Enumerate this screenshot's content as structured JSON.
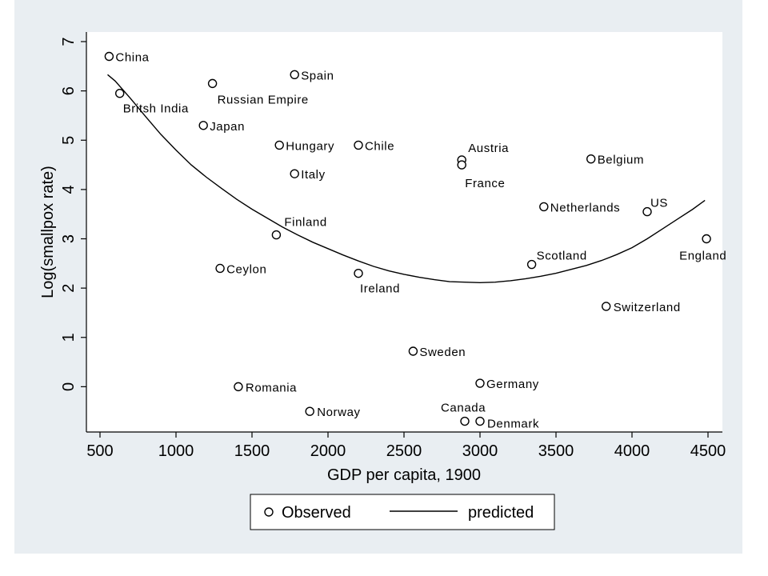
{
  "chart_data": {
    "type": "scatter",
    "title": "",
    "xlabel": "GDP per capita, 1900",
    "ylabel": "Log(smallpox rate)",
    "xlim": [
      500,
      4500
    ],
    "ylim": [
      -1,
      7
    ],
    "xticks": [
      500,
      1000,
      1500,
      2000,
      2500,
      3000,
      3500,
      4000,
      4500
    ],
    "yticks": [
      0,
      1,
      2,
      3,
      4,
      5,
      6,
      7
    ],
    "grid": false,
    "legend_position": "bottom",
    "legend": [
      {
        "label": "Observed",
        "marker": "circle"
      },
      {
        "label": "predicted",
        "marker": "line"
      }
    ],
    "colors": {
      "background": "#e9eef2",
      "plot_bg": "#ffffff",
      "marks": "#000000"
    },
    "series": [
      {
        "name": "Observed",
        "kind": "scatter",
        "points": [
          {
            "label": "China",
            "x": 560,
            "y": 6.7
          },
          {
            "label": "Britsh India",
            "x": 630,
            "y": 5.95
          },
          {
            "label": "Russian Empire",
            "x": 1240,
            "y": 6.15
          },
          {
            "label": "Spain",
            "x": 1780,
            "y": 6.33
          },
          {
            "label": "Japan",
            "x": 1180,
            "y": 5.3
          },
          {
            "label": "Hungary",
            "x": 1680,
            "y": 4.9
          },
          {
            "label": "Chile",
            "x": 2200,
            "y": 4.9
          },
          {
            "label": "Italy",
            "x": 1780,
            "y": 4.32
          },
          {
            "label": "Austria",
            "x": 2880,
            "y": 4.6
          },
          {
            "label": "France",
            "x": 2880,
            "y": 4.5
          },
          {
            "label": "Belgium",
            "x": 3730,
            "y": 4.62
          },
          {
            "label": "Netherlands",
            "x": 3420,
            "y": 3.65
          },
          {
            "label": "US",
            "x": 4100,
            "y": 3.55
          },
          {
            "label": "Finland",
            "x": 1660,
            "y": 3.08
          },
          {
            "label": "England",
            "x": 4490,
            "y": 3.0
          },
          {
            "label": "Scotland",
            "x": 3340,
            "y": 2.48
          },
          {
            "label": "Ceylon",
            "x": 1290,
            "y": 2.4
          },
          {
            "label": "Ireland",
            "x": 2200,
            "y": 2.3
          },
          {
            "label": "Switzerland",
            "x": 3830,
            "y": 1.63
          },
          {
            "label": "Sweden",
            "x": 2560,
            "y": 0.72
          },
          {
            "label": "Germany",
            "x": 3000,
            "y": 0.07
          },
          {
            "label": "Romania",
            "x": 1410,
            "y": 0.0
          },
          {
            "label": "Norway",
            "x": 1880,
            "y": -0.5
          },
          {
            "label": "Canada",
            "x": 2900,
            "y": -0.7
          },
          {
            "label": "Denmark",
            "x": 3000,
            "y": -0.7
          }
        ]
      },
      {
        "name": "predicted",
        "kind": "line",
        "x": [
          550,
          600,
          700,
          800,
          900,
          1000,
          1100,
          1200,
          1300,
          1400,
          1500,
          1600,
          1700,
          1800,
          1900,
          2000,
          2100,
          2200,
          2300,
          2400,
          2500,
          2600,
          2700,
          2800,
          2900,
          3000,
          3100,
          3200,
          3300,
          3400,
          3500,
          3600,
          3700,
          3800,
          3900,
          4000,
          4100,
          4200,
          4300,
          4400,
          4480
        ],
        "y": [
          6.33,
          6.2,
          5.85,
          5.48,
          5.12,
          4.8,
          4.5,
          4.25,
          4.02,
          3.8,
          3.6,
          3.42,
          3.24,
          3.08,
          2.93,
          2.8,
          2.67,
          2.55,
          2.44,
          2.35,
          2.28,
          2.22,
          2.17,
          2.13,
          2.12,
          2.11,
          2.12,
          2.15,
          2.19,
          2.24,
          2.3,
          2.38,
          2.46,
          2.56,
          2.68,
          2.82,
          3.0,
          3.2,
          3.4,
          3.6,
          3.78
        ]
      }
    ]
  }
}
